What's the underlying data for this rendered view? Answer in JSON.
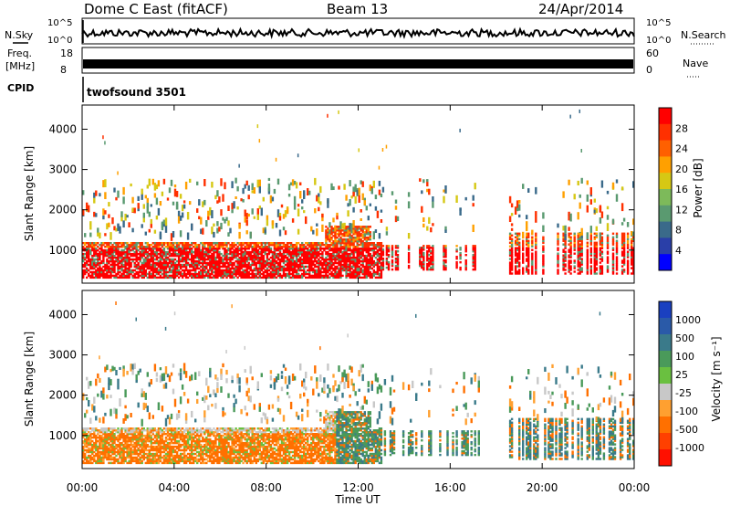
{
  "header": {
    "station": "Dome C East (fitACF)",
    "beam": "Beam 13",
    "date": "24/Apr/2014"
  },
  "top_panels": {
    "nsky": {
      "label": "N.Sky",
      "tick_top": "10^5",
      "tick_bottom": "10^0"
    },
    "nsearch": {
      "label": "N.Search",
      "tick_top": "10^5",
      "tick_bottom": "10^0"
    },
    "freq": {
      "label_line1": "Freq.",
      "label_line2": "[MHz]",
      "tick_top": "18",
      "tick_bottom": "8"
    },
    "nave": {
      "label": "Nave",
      "tick_top": "60",
      "tick_bottom": "0"
    },
    "cpid": {
      "label": "CPID",
      "value": "twofsound 3501"
    }
  },
  "chart_data": [
    {
      "type": "heatmap",
      "name": "power",
      "ylabel": "Slant Range [km]",
      "yticks": [
        "1000",
        "2000",
        "3000",
        "4000"
      ],
      "ylim": [
        180,
        4600
      ],
      "xlim_hours": [
        0,
        24
      ],
      "colorbar": {
        "label": "Power [dB]",
        "ticks": [
          "4",
          "8",
          "12",
          "16",
          "20",
          "24",
          "28"
        ],
        "colors": [
          "#0000ff",
          "#2a3fa8",
          "#3a6a8a",
          "#5a9a70",
          "#7dba5a",
          "#d6c814",
          "#ffa000",
          "#ff6000",
          "#ff3000",
          "#ff0000"
        ]
      }
    },
    {
      "type": "heatmap",
      "name": "velocity",
      "ylabel": "Slant Range [km]",
      "yticks": [
        "1000",
        "2000",
        "3000",
        "4000"
      ],
      "ylim": [
        180,
        4600
      ],
      "xlim_hours": [
        0,
        24
      ],
      "xticks": [
        "00:00",
        "04:00",
        "08:00",
        "12:00",
        "16:00",
        "20:00",
        "00:00"
      ],
      "xlabel": "Time UT",
      "colorbar": {
        "label": "Velocity [m s⁻¹]",
        "ticks": [
          "1000",
          "500",
          "100",
          "25",
          "-25",
          "-100",
          "-500",
          "-1000"
        ],
        "colors": [
          "#1a40c0",
          "#2a5aa8",
          "#3a7a8a",
          "#4a9a5a",
          "#6ac040",
          "#c8c8c8",
          "#ffa030",
          "#ff7000",
          "#ff4000",
          "#ff1000"
        ]
      }
    }
  ]
}
